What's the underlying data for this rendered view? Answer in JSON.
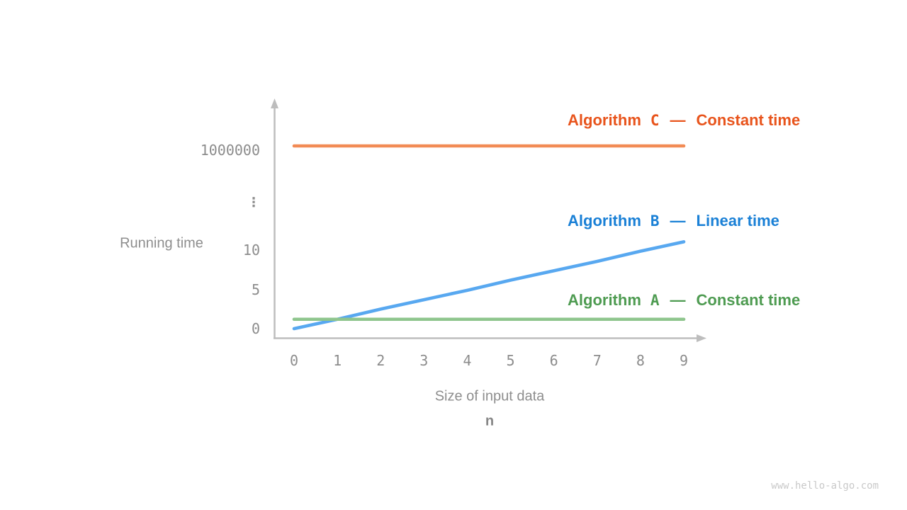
{
  "axes": {
    "y_title": "Running time",
    "x_title": "Size of input data",
    "x_variable": "n"
  },
  "legend": [
    {
      "algorithm": "Algorithm",
      "letter": "C",
      "dash": "—",
      "desc": "Constant time",
      "color": "#E8541C"
    },
    {
      "algorithm": "Algorithm",
      "letter": "B",
      "dash": "—",
      "desc": "Linear time",
      "color": "#1A80D6"
    },
    {
      "algorithm": "Algorithm",
      "letter": "A",
      "dash": "—",
      "desc": "Constant time",
      "color": "#4E9B51"
    }
  ],
  "watermark": "www.hello-algo.com",
  "colors": {
    "axis": "#BDBDBD",
    "tick_text": "#8C8C8C",
    "gray_text": "#8E8E8E",
    "watermark": "#C9C9C9"
  },
  "chart_data": {
    "type": "line",
    "xlabel": "Size of input data",
    "x_variable": "n",
    "ylabel": "Running time",
    "x": [
      0,
      1,
      2,
      3,
      4,
      5,
      6,
      7,
      8,
      9
    ],
    "x_tick_labels": [
      "0",
      "1",
      "2",
      "3",
      "4",
      "5",
      "6",
      "7",
      "8",
      "9"
    ],
    "y_tick_labels": [
      "0",
      "5",
      "10",
      "⋮",
      "1000000"
    ],
    "broken_y_axis": true,
    "grid": false,
    "legend_position": "inline-right",
    "series": [
      {
        "name": "Algorithm C",
        "label": "Constant time",
        "color": "#F28B55",
        "values": [
          1000000,
          1000000,
          1000000,
          1000000,
          1000000,
          1000000,
          1000000,
          1000000,
          1000000,
          1000000
        ]
      },
      {
        "name": "Algorithm B",
        "label": "Linear time",
        "color": "#58A8F0",
        "values": [
          0,
          1.2,
          2.5,
          3.7,
          4.9,
          6.2,
          7.4,
          8.6,
          9.9,
          11.1
        ]
      },
      {
        "name": "Algorithm A",
        "label": "Constant time",
        "color": "#8EC58D",
        "values": [
          1.2,
          1.2,
          1.2,
          1.2,
          1.2,
          1.2,
          1.2,
          1.2,
          1.2,
          1.2
        ]
      }
    ]
  }
}
